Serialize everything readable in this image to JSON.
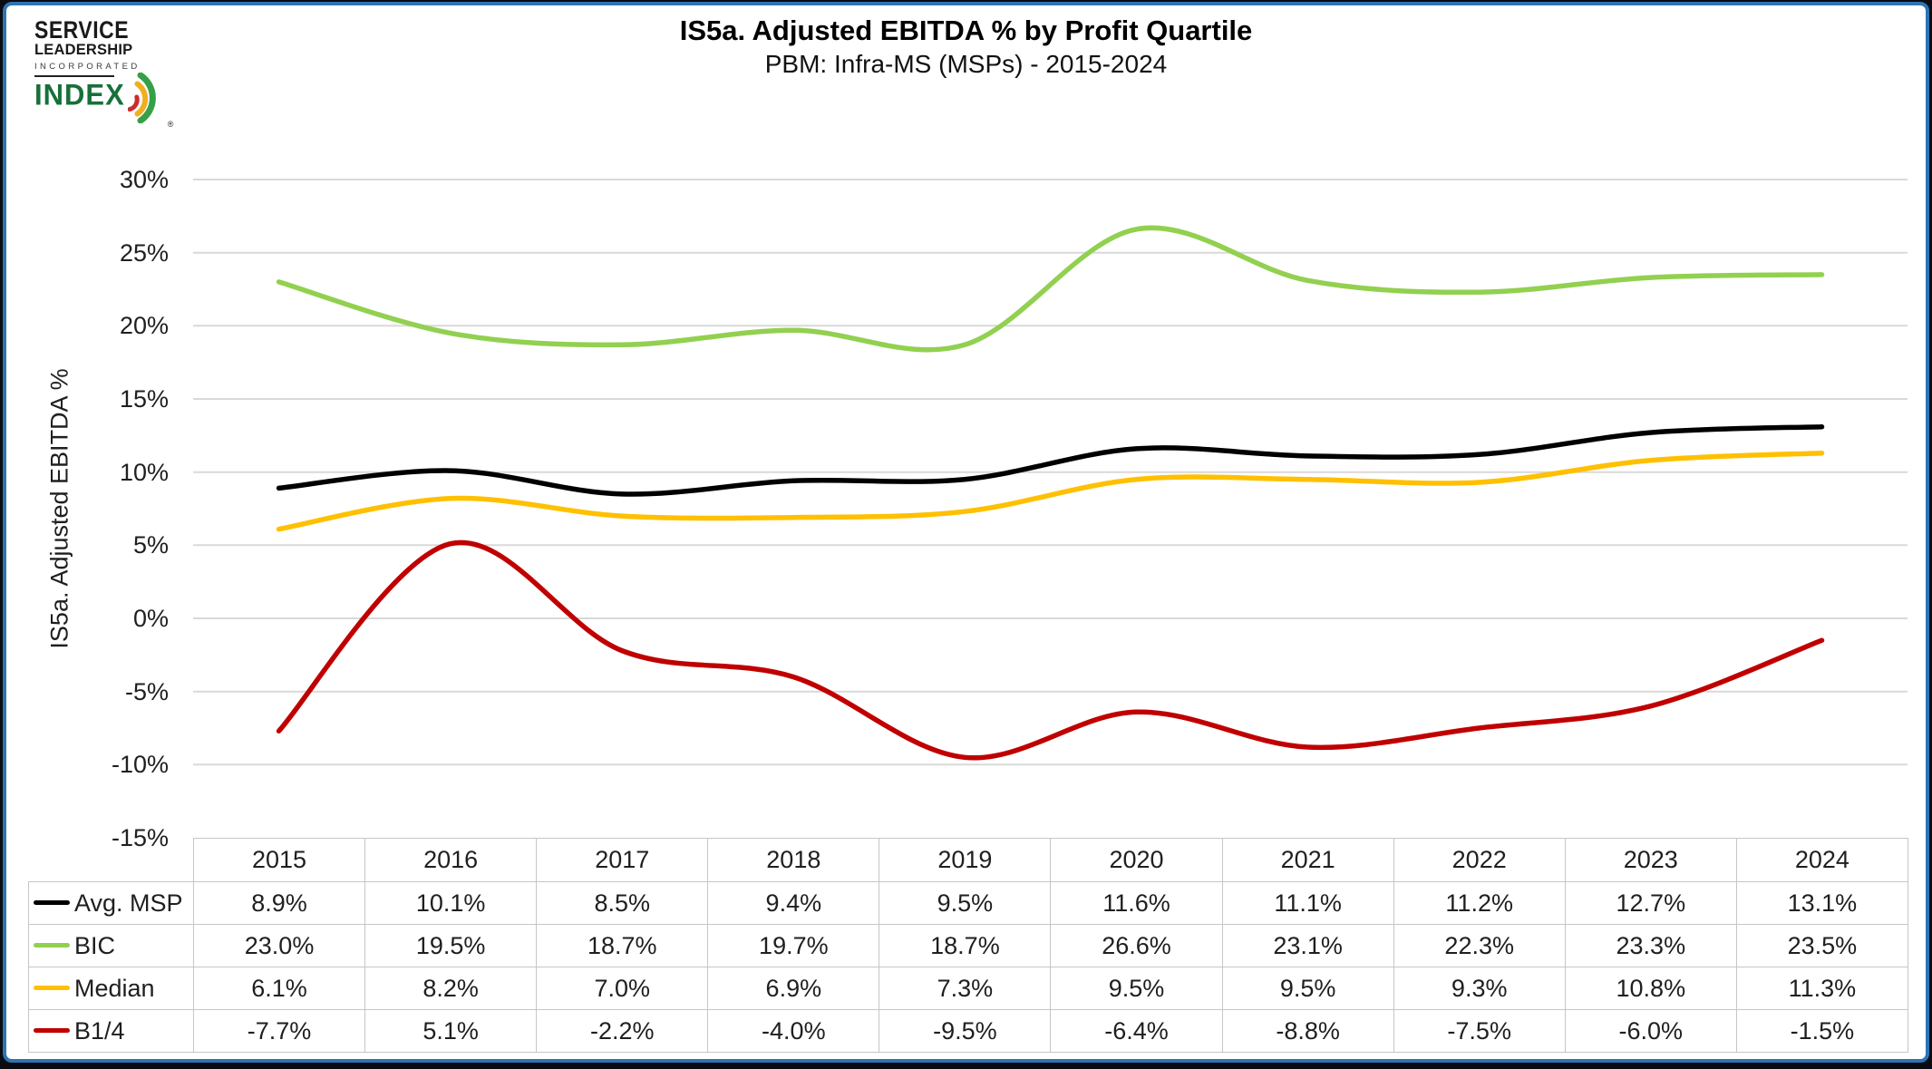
{
  "logo": {
    "line1": "SERVICE",
    "line2": "LEADERSHIP",
    "line3": "INCORPORATED",
    "line4": "INDEX",
    "registered": "®"
  },
  "chart_data": {
    "type": "line",
    "title": "IS5a. Adjusted EBITDA % by Profit Quartile",
    "subtitle": "PBM: Infra-MS (MSPs) - 2015-2024",
    "ylabel": "IS5a. Adjusted EBITDA %",
    "categories": [
      "2015",
      "2016",
      "2017",
      "2018",
      "2019",
      "2020",
      "2021",
      "2022",
      "2023",
      "2024"
    ],
    "series": [
      {
        "name": "Avg. MSP",
        "color": "#000000",
        "values": [
          8.9,
          10.1,
          8.5,
          9.4,
          9.5,
          11.6,
          11.1,
          11.2,
          12.7,
          13.1
        ]
      },
      {
        "name": "BIC",
        "color": "#92D050",
        "values": [
          23.0,
          19.5,
          18.7,
          19.7,
          18.7,
          26.6,
          23.1,
          22.3,
          23.3,
          23.5
        ]
      },
      {
        "name": "Median",
        "color": "#FFC000",
        "values": [
          6.1,
          8.2,
          7.0,
          6.9,
          7.3,
          9.5,
          9.5,
          9.3,
          10.8,
          11.3
        ]
      },
      {
        "name": "B1/4",
        "color": "#C00000",
        "values": [
          -7.7,
          5.1,
          -2.2,
          -4.0,
          -9.5,
          -6.4,
          -8.8,
          -7.5,
          -6.0,
          -1.5
        ]
      }
    ],
    "ylim": [
      -15,
      30
    ],
    "ytick_step": 5,
    "ytick_labels": [
      "30%",
      "25%",
      "20%",
      "15%",
      "10%",
      "5%",
      "0%",
      "-5%",
      "-10%",
      "-15%"
    ],
    "value_suffix": "%",
    "grid": true,
    "smooth": true,
    "legend_position": "table-left",
    "colors": {
      "gridline": "#D9D9D9",
      "table_border": "#C6C6C6",
      "frame_blue": "#2E74B5",
      "text": "#1F1F1F"
    }
  }
}
